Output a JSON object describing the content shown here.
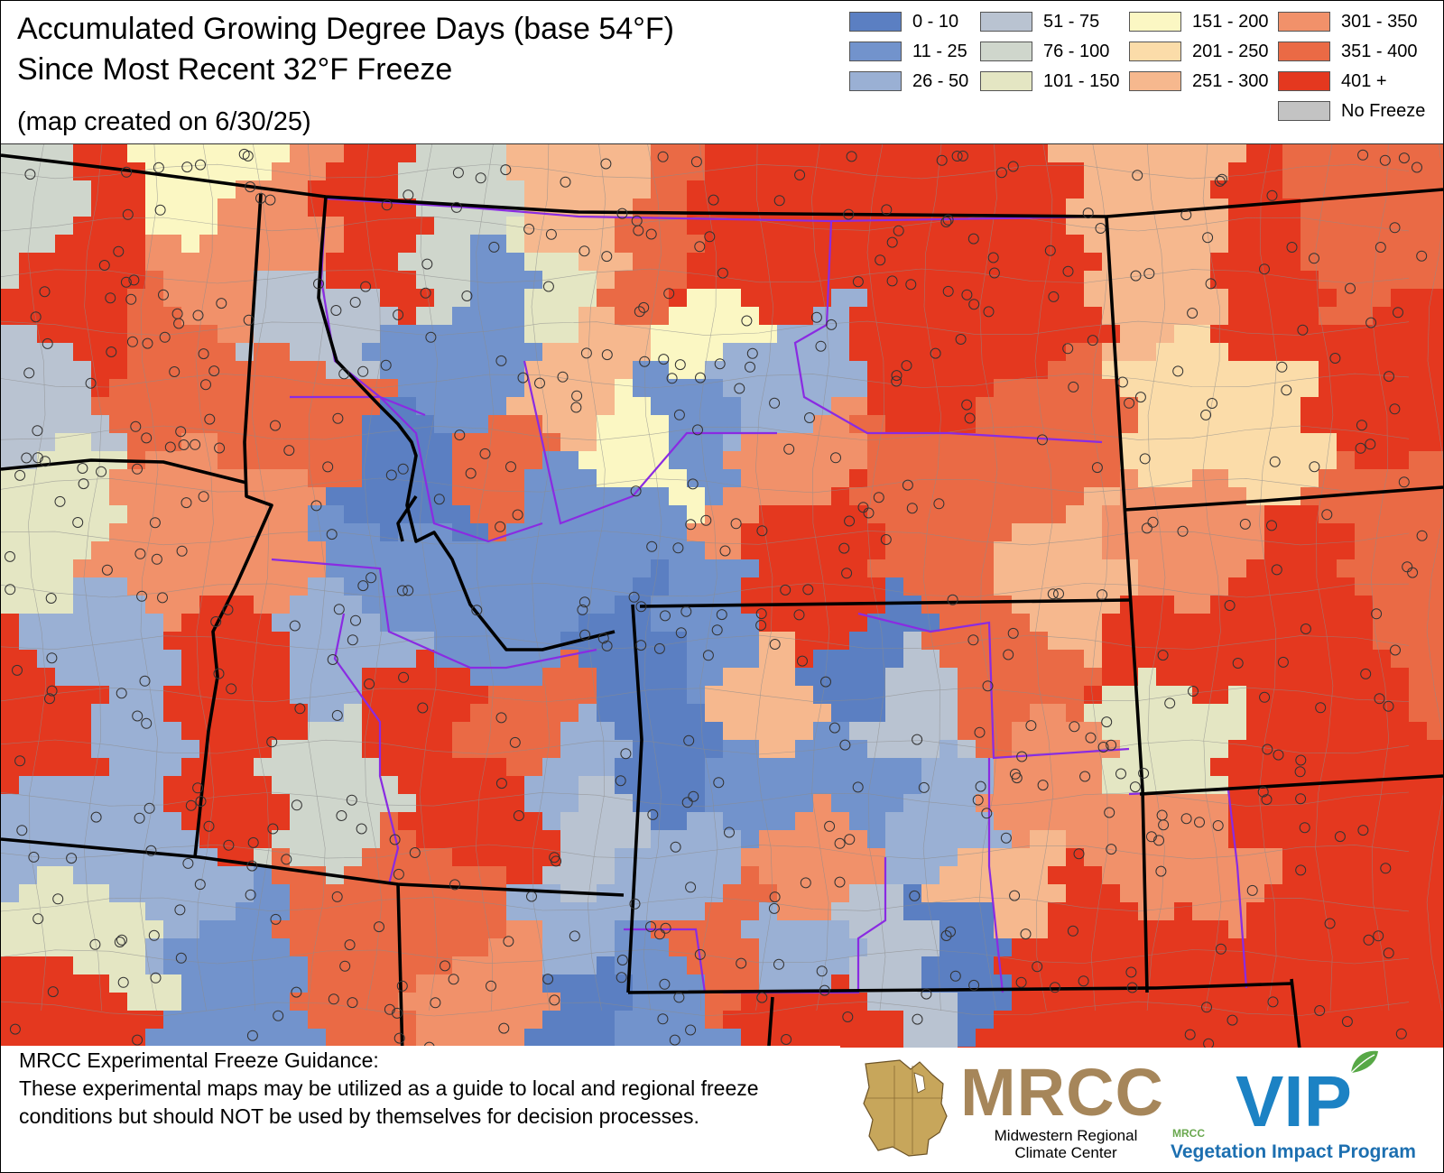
{
  "title": {
    "line1": "Accumulated Growing Degree Days (base 54°F)",
    "line2": "Since Most Recent 32°F Freeze",
    "line3": "(map created on 6/30/25)"
  },
  "legend": {
    "items": [
      {
        "label": "0 - 10",
        "color": "#5b7fc2"
      },
      {
        "label": "11 - 25",
        "color": "#7293cc"
      },
      {
        "label": "26 - 50",
        "color": "#9ab0d4"
      },
      {
        "label": "51 - 75",
        "color": "#b9c3d1"
      },
      {
        "label": "76 - 100",
        "color": "#cfd6cc"
      },
      {
        "label": "101 - 150",
        "color": "#e4e6c3"
      },
      {
        "label": "151 - 200",
        "color": "#fbf7c3"
      },
      {
        "label": "201 - 250",
        "color": "#fbdca9"
      },
      {
        "label": "251 - 300",
        "color": "#f6b88e"
      },
      {
        "label": "301 - 350",
        "color": "#f1916a"
      },
      {
        "label": "351 - 400",
        "color": "#ea6a45"
      },
      {
        "label": "401 +",
        "color": "#e4381f"
      },
      {
        "label": "No Freeze",
        "color": "#c3c3c3"
      }
    ]
  },
  "disclaimer": {
    "heading": "MRCC Experimental Freeze Guidance:",
    "body": "These experimental maps may be utilized as a guide to local and regional freeze conditions but should NOT be used by themselves for decision processes."
  },
  "logos": {
    "mrcc": "MRCC",
    "mrcc_sub": "Midwestern Regional Climate Center",
    "vip_small": "MRCC",
    "vip": "VIP",
    "vip_sub": "Vegetation Impact Program"
  }
}
